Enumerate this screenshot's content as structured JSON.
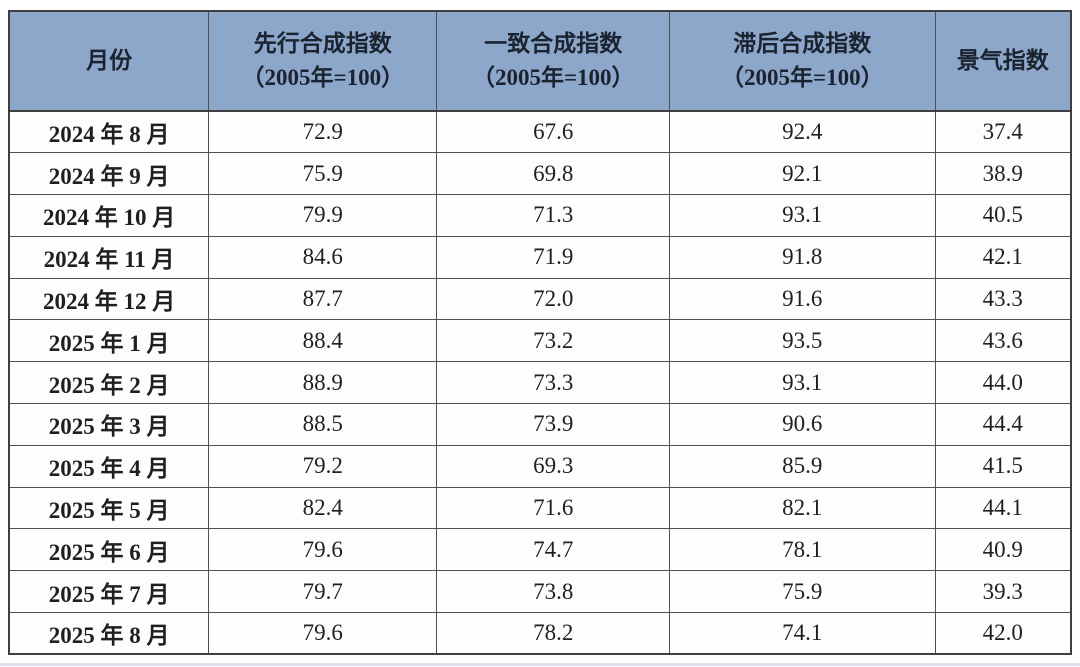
{
  "colors": {
    "header_bg": "#8ca7c9",
    "header_text": "#1b2331",
    "body_text": "#1f1f1f",
    "border_dark": "#3f3f3f",
    "border_inner": "#4f4f4f",
    "row_bg": "#fdfdfd",
    "bottom_strip": "#ccd6e2"
  },
  "table": {
    "headers": {
      "month": "月份",
      "leading": "先行合成指数\n（2005年=100）",
      "coincident": "一致合成指数\n（2005年=100）",
      "lagging": "滞后合成指数\n（2005年=100）",
      "prosperity": "景气指数"
    },
    "rows": [
      {
        "month": "2024 年 8 月",
        "values": [
          "72.9",
          "67.6",
          "92.4",
          "37.4"
        ]
      },
      {
        "month": "2024 年 9 月",
        "values": [
          "75.9",
          "69.8",
          "92.1",
          "38.9"
        ]
      },
      {
        "month": "2024 年 10 月",
        "values": [
          "79.9",
          "71.3",
          "93.1",
          "40.5"
        ]
      },
      {
        "month": "2024 年 11 月",
        "values": [
          "84.6",
          "71.9",
          "91.8",
          "42.1"
        ]
      },
      {
        "month": "2024 年 12 月",
        "values": [
          "87.7",
          "72.0",
          "91.6",
          "43.3"
        ]
      },
      {
        "month": "2025 年 1 月",
        "values": [
          "88.4",
          "73.2",
          "93.5",
          "43.6"
        ]
      },
      {
        "month": "2025 年 2 月",
        "values": [
          "88.9",
          "73.3",
          "93.1",
          "44.0"
        ]
      },
      {
        "month": "2025 年 3 月",
        "values": [
          "88.5",
          "73.9",
          "90.6",
          "44.4"
        ]
      },
      {
        "month": "2025 年 4 月",
        "values": [
          "79.2",
          "69.3",
          "85.9",
          "41.5"
        ]
      },
      {
        "month": "2025 年 5 月",
        "values": [
          "82.4",
          "71.6",
          "82.1",
          "44.1"
        ]
      },
      {
        "month": "2025 年 6 月",
        "values": [
          "79.6",
          "74.7",
          "78.1",
          "40.9"
        ]
      },
      {
        "month": "2025 年 7 月",
        "values": [
          "79.7",
          "73.8",
          "75.9",
          "39.3"
        ]
      },
      {
        "month": "2025 年 8 月",
        "values": [
          "79.6",
          "78.2",
          "74.1",
          "42.0"
        ]
      }
    ]
  },
  "chart_data": {
    "type": "table",
    "columns": [
      "月份",
      "先行合成指数（2005年=100）",
      "一致合成指数（2005年=100）",
      "滞后合成指数（2005年=100）",
      "景气指数"
    ],
    "rows": [
      [
        "2024年8月",
        72.9,
        67.6,
        92.4,
        37.4
      ],
      [
        "2024年9月",
        75.9,
        69.8,
        92.1,
        38.9
      ],
      [
        "2024年10月",
        79.9,
        71.3,
        93.1,
        40.5
      ],
      [
        "2024年11月",
        84.6,
        71.9,
        91.8,
        42.1
      ],
      [
        "2024年12月",
        87.7,
        72.0,
        91.6,
        43.3
      ],
      [
        "2025年1月",
        88.4,
        73.2,
        93.5,
        43.6
      ],
      [
        "2025年2月",
        88.9,
        73.3,
        93.1,
        44.0
      ],
      [
        "2025年3月",
        88.5,
        73.9,
        90.6,
        44.4
      ],
      [
        "2025年4月",
        79.2,
        69.3,
        85.9,
        41.5
      ],
      [
        "2025年5月",
        82.4,
        71.6,
        82.1,
        44.1
      ],
      [
        "2025年6月",
        79.6,
        74.7,
        78.1,
        40.9
      ],
      [
        "2025年7月",
        79.7,
        73.8,
        75.9,
        39.3
      ],
      [
        "2025年8月",
        79.6,
        78.2,
        74.1,
        42.0
      ]
    ]
  }
}
